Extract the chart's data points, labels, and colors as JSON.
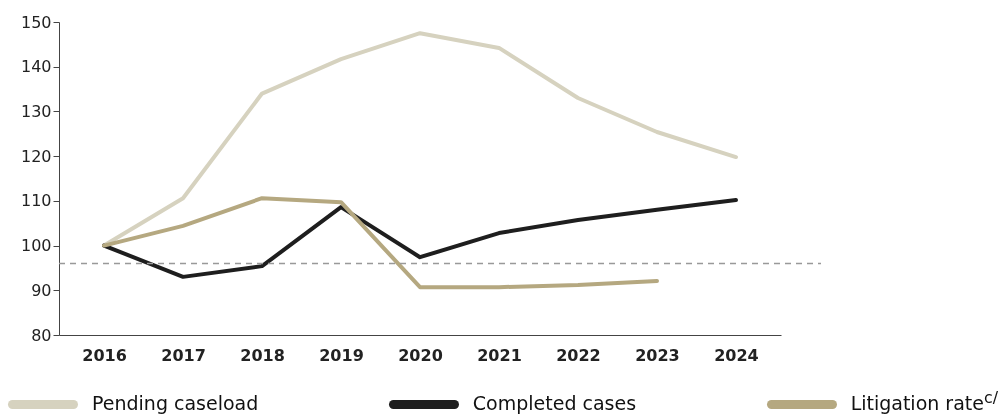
{
  "chart_data": {
    "type": "line",
    "categories": [
      "2016",
      "2017",
      "2018",
      "2019",
      "2020",
      "2021",
      "2022",
      "2023",
      "2024"
    ],
    "series": [
      {
        "name": "Pending caseload",
        "color": "#d6d2bf",
        "values": [
          100,
          110.6,
          134,
          141.7,
          147.5,
          144.2,
          133,
          125.4,
          119.8
        ]
      },
      {
        "name": "Completed cases",
        "color": "#1e1e1e",
        "values": [
          100,
          93,
          95.4,
          108.6,
          97.4,
          102.8,
          105.7,
          108,
          110.2
        ]
      },
      {
        "name": "Litigation rate$^{c/}$",
        "color": "#b5a880",
        "values": [
          100,
          104.4,
          110.6,
          109.7,
          90.7,
          90.7,
          91.2,
          92.1,
          null
        ]
      }
    ],
    "ylim": [
      80,
      150
    ],
    "yticks": [
      80,
      90,
      100,
      110,
      120,
      130,
      140,
      150
    ],
    "grid": false,
    "legend": "bottom",
    "marker": "none",
    "line_style": "solid",
    "ref_lines": [
      {
        "axis": "y",
        "value": 96,
        "color": "#999999",
        "line_style": "dashed"
      }
    ]
  }
}
